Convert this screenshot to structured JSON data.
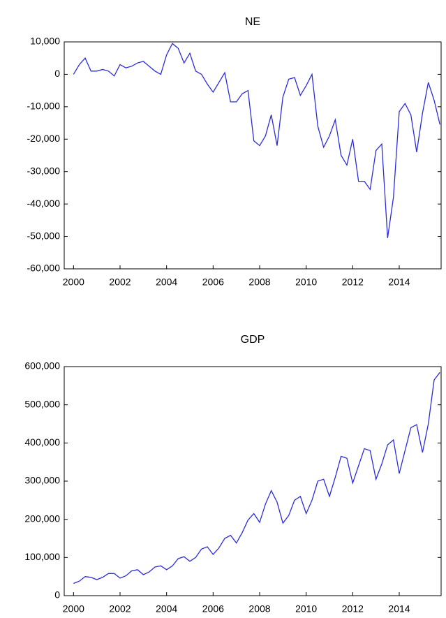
{
  "chart_data": [
    {
      "type": "line",
      "title": "NE",
      "color": "#2b2bdc",
      "x": [
        2000,
        2000.25,
        2000.5,
        2000.75,
        2001,
        2001.25,
        2001.5,
        2001.75,
        2002,
        2002.25,
        2002.5,
        2002.75,
        2003,
        2003.25,
        2003.5,
        2003.75,
        2004,
        2004.25,
        2004.5,
        2004.75,
        2005,
        2005.25,
        2005.5,
        2005.75,
        2006,
        2006.25,
        2006.5,
        2006.75,
        2007,
        2007.25,
        2007.5,
        2007.75,
        2008,
        2008.25,
        2008.5,
        2008.75,
        2009,
        2009.25,
        2009.5,
        2009.75,
        2010,
        2010.25,
        2010.5,
        2010.75,
        2011,
        2011.25,
        2011.5,
        2011.75,
        2012,
        2012.25,
        2012.5,
        2012.75,
        2013,
        2013.25,
        2013.5,
        2013.75,
        2014,
        2014.25,
        2014.5,
        2014.75,
        2015,
        2015.25,
        2015.5,
        2015.75
      ],
      "values": [
        0,
        3000,
        5000,
        1000,
        1000,
        1500,
        1000,
        -500,
        3000,
        2000,
        2500,
        3500,
        4000,
        2500,
        1000,
        0,
        6000,
        9500,
        8000,
        3500,
        6500,
        1000,
        0,
        -3000,
        -5500,
        -2500,
        500,
        -8500,
        -8500,
        -6000,
        -5000,
        -20500,
        -22000,
        -19000,
        -12500,
        -22000,
        -7000,
        -1500,
        -1000,
        -6500,
        -3500,
        0,
        -16000,
        -22500,
        -19000,
        -14000,
        -25000,
        -28000,
        -20000,
        -33000,
        -33000,
        -35500,
        -23500,
        -21500,
        -50500,
        -38000,
        -11500,
        -9000,
        -12500,
        -24000,
        -12000,
        -2500,
        -8000,
        -15500
      ],
      "xlim": [
        1999.6,
        2015.8
      ],
      "xticks": [
        2000,
        2002,
        2004,
        2006,
        2008,
        2010,
        2012,
        2014
      ],
      "ylim": [
        -60000,
        10000
      ],
      "yticks": [
        {
          "value": -60000,
          "label": "-60,000"
        },
        {
          "value": -50000,
          "label": "-50,000"
        },
        {
          "value": -40000,
          "label": "-40,000"
        },
        {
          "value": -30000,
          "label": "-30,000"
        },
        {
          "value": -20000,
          "label": "-20,000"
        },
        {
          "value": -10000,
          "label": "-10,000"
        },
        0,
        {
          "value": 10000,
          "label": "10,000"
        }
      ]
    },
    {
      "type": "line",
      "title": "GDP",
      "color": "#2b2bdc",
      "x": [
        2000,
        2000.25,
        2000.5,
        2000.75,
        2001,
        2001.25,
        2001.5,
        2001.75,
        2002,
        2002.25,
        2002.5,
        2002.75,
        2003,
        2003.25,
        2003.5,
        2003.75,
        2004,
        2004.25,
        2004.5,
        2004.75,
        2005,
        2005.25,
        2005.5,
        2005.75,
        2006,
        2006.25,
        2006.5,
        2006.75,
        2007,
        2007.25,
        2007.5,
        2007.75,
        2008,
        2008.25,
        2008.5,
        2008.75,
        2009,
        2009.25,
        2009.5,
        2009.75,
        2010,
        2010.25,
        2010.5,
        2010.75,
        2011,
        2011.25,
        2011.5,
        2011.75,
        2012,
        2012.25,
        2012.5,
        2012.75,
        2013,
        2013.25,
        2013.5,
        2013.75,
        2014,
        2014.25,
        2014.5,
        2014.75,
        2015,
        2015.25,
        2015.5,
        2015.75
      ],
      "values": [
        32000,
        38000,
        50000,
        48000,
        42000,
        48000,
        58000,
        58000,
        46000,
        52000,
        65000,
        68000,
        55000,
        62000,
        75000,
        78000,
        68000,
        78000,
        97000,
        102000,
        90000,
        100000,
        122000,
        128000,
        108000,
        125000,
        150000,
        158000,
        138000,
        165000,
        198000,
        215000,
        192000,
        240000,
        275000,
        245000,
        190000,
        210000,
        250000,
        260000,
        215000,
        250000,
        300000,
        305000,
        260000,
        310000,
        365000,
        360000,
        295000,
        340000,
        385000,
        380000,
        305000,
        345000,
        395000,
        408000,
        320000,
        380000,
        440000,
        448000,
        375000,
        450000,
        565000,
        585000
      ],
      "xlim": [
        1999.6,
        2015.8
      ],
      "xticks": [
        2000,
        2002,
        2004,
        2006,
        2008,
        2010,
        2012,
        2014
      ],
      "ylim": [
        0,
        600000
      ],
      "yticks": [
        0,
        {
          "value": 100000,
          "label": "100,000"
        },
        {
          "value": 200000,
          "label": "200,000"
        },
        {
          "value": 300000,
          "label": "300,000"
        },
        {
          "value": 400000,
          "label": "400,000"
        },
        {
          "value": 500000,
          "label": "500,000"
        },
        {
          "value": 600000,
          "label": "600,000"
        }
      ]
    }
  ]
}
